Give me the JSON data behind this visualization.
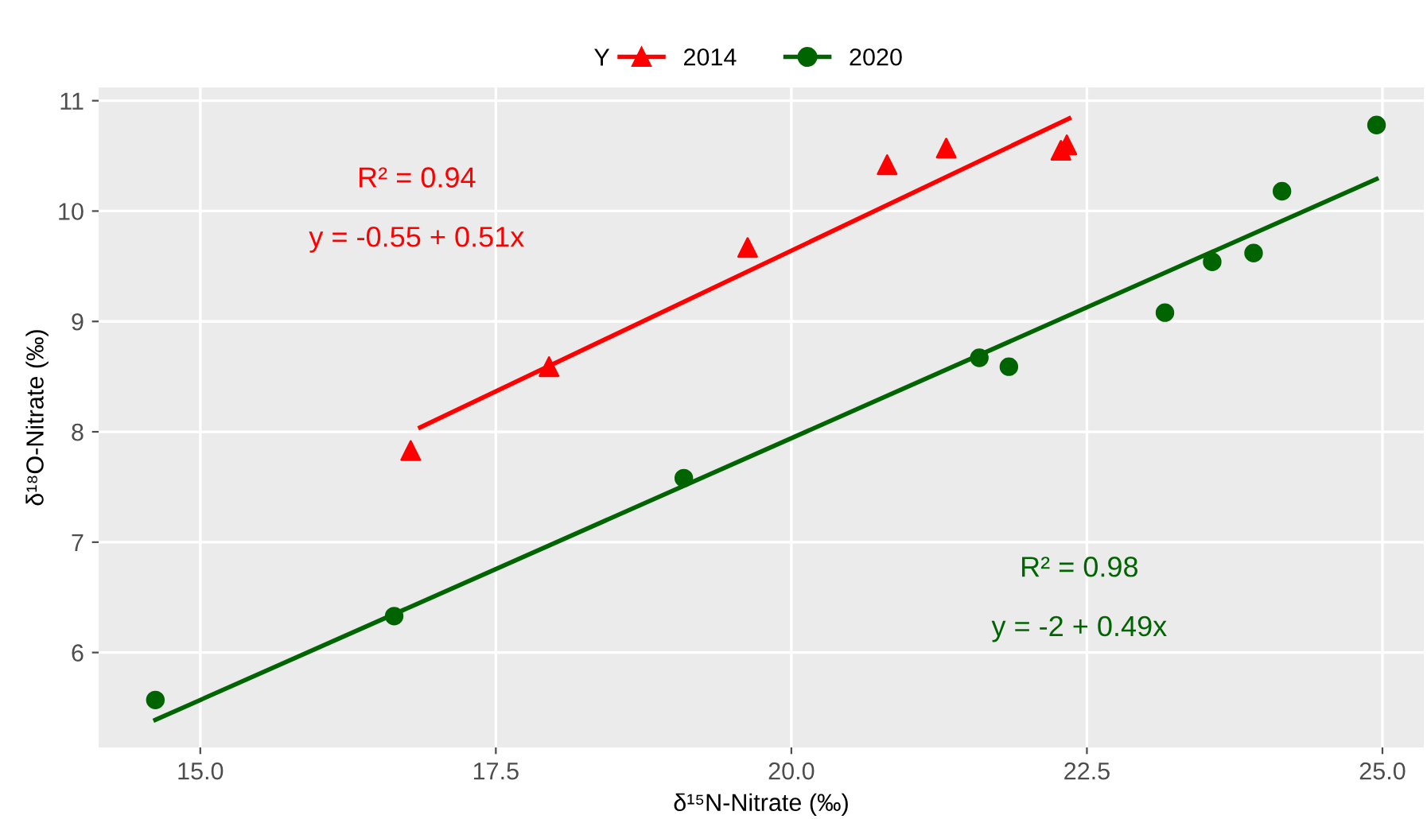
{
  "chart_data": {
    "type": "scatter",
    "xlabel": "δ¹⁵N-Nitrate (‰)",
    "ylabel": "δ¹⁸O-Nitrate (‰)",
    "legend_title": "Y",
    "series": [
      {
        "name": "2014",
        "color": "#ff0000",
        "marker": "triangle",
        "x": [
          16.78,
          17.95,
          19.63,
          20.81,
          21.31,
          22.28,
          22.33
        ],
        "values": [
          7.83,
          8.59,
          9.67,
          10.42,
          10.57,
          10.55,
          10.6
        ]
      },
      {
        "name": "2020",
        "color": "#006400",
        "marker": "circle",
        "x": [
          14.62,
          16.64,
          19.09,
          21.59,
          21.84,
          23.16,
          23.56,
          23.91,
          24.15,
          24.95
        ],
        "values": [
          5.57,
          6.33,
          7.58,
          8.67,
          8.59,
          9.08,
          9.54,
          9.62,
          10.18,
          10.78
        ]
      },
      {
        "type": "line",
        "color": "#ff0000",
        "x": [
          16.86,
          22.35
        ],
        "values": [
          8.04,
          10.84
        ]
      },
      {
        "type": "line",
        "color": "#006400",
        "x": [
          14.62,
          24.95
        ],
        "values": [
          5.39,
          10.29
        ]
      }
    ],
    "annotations": [
      "R² = 0.94",
      "y = -0.55 + 0.51x",
      "R² = 0.98",
      "y = -2 + 0.49x"
    ],
    "xlim": [
      14.14,
      25.35
    ],
    "ylim": [
      5.14,
      11.12
    ],
    "xticks": [
      {
        "value": 15,
        "label": "15.0"
      },
      17.5,
      {
        "value": 20,
        "label": "20.0"
      },
      22.5,
      {
        "value": 25,
        "label": "25.0"
      }
    ],
    "yticks": [
      6,
      7,
      8,
      9,
      10,
      11
    ],
    "grid": true,
    "legend": "top"
  }
}
